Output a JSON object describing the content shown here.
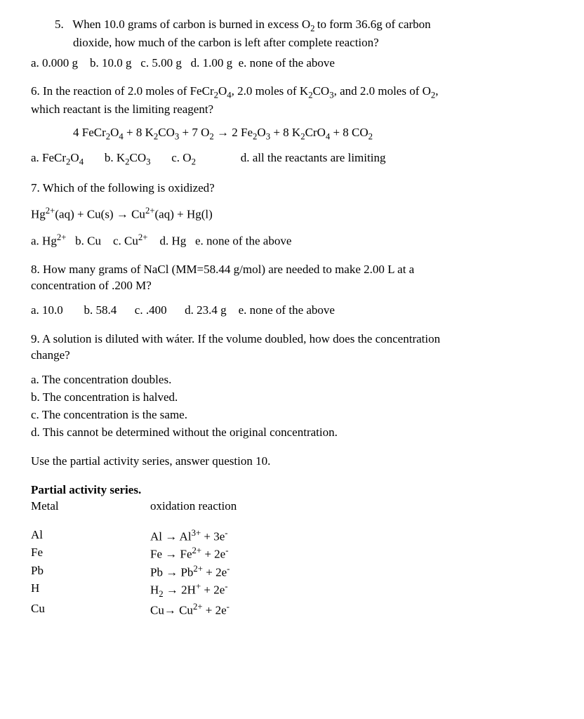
{
  "q5": {
    "num": "5.",
    "stem1": "When 10.0 grams of carbon is burned in excess O",
    "stem2": " to form 36.6g of carbon",
    "stem3": "dioxide, how much of the carbon is left after complete reaction?",
    "a": "a.   0.000 g",
    "b": "b. 10.0 g",
    "c": "c. 5.00 g",
    "d": "d. 1.00 g",
    "e": "e. none of the above"
  },
  "q6": {
    "stem1": "6. In the reaction of 2.0 moles of FeCr",
    "stem2": "O",
    "stem3": ", 2.0 moles of K",
    "stem4": "CO",
    "stem5": ", and 2.0 moles of O",
    "stem6": ",",
    "stem7": "which reactant is the limiting reagent?",
    "eq": {
      "p1": "4 FeCr",
      "p2": "O",
      "p3": "  +  8 K",
      "p4": "CO",
      "p5": "  + 7 O",
      "p6": " → 2 Fe",
      "p7": "O",
      "p8": "  +  8 K",
      "p9": "CrO",
      "p10": "  +  8 CO"
    },
    "a": "a.   FeCr",
    "a2": "O",
    "b": "b.      K",
    "b2": "CO",
    "c": "c. O",
    "d": "d. all the reactants are limiting"
  },
  "q7": {
    "stem": "7. Which of the following is oxidized?",
    "eq": {
      "p1": "Hg",
      "p2": "(aq)  +  Cu(s)  →   Cu",
      "p3": "(aq)    +  Hg(l)"
    },
    "a": "a.   Hg",
    "b": "b. Cu",
    "c": "c. Cu",
    "d": "d. Hg",
    "e": "e. none of the above"
  },
  "q8": {
    "stem1": "8. How many grams of NaCl (MM=58.44 g/mol) are needed to make 2.00 L at a",
    "stem2": "concentration of .200 M?",
    "a": "a.   10.0",
    "b": "b. 58.4",
    "c": "c. .400",
    "d": "d.   23.4 g",
    "e": "e. none of the above"
  },
  "q9": {
    "stem1": "9. A solution is diluted with wáter. If the volume doubled, how does the concentration",
    "stem2": "change?",
    "a": "a.   The concentration doubles.",
    "b": "b.   The concentration is halved.",
    "c": "c.   The concentration is the same.",
    "d": "d.   This cannot be determined without the original concentration."
  },
  "q10intro": "Use the partial activity series, answer question 10.",
  "activity": {
    "title": "Partial activity series.",
    "hMetal": "Metal",
    "hRxn": "oxidation reaction",
    "rows": [
      {
        "metal": "Al",
        "lhs": "Al → Al",
        "sup": "3+",
        "rhs": "  + 3e"
      },
      {
        "metal": "Fe",
        "lhs": " Fe → Fe",
        "sup": "2+",
        "rhs": "  +  2e"
      },
      {
        "metal": "Pb",
        "lhs": "Pb → Pb",
        "sup": "2+",
        "rhs": "  +  2e"
      },
      {
        "metal": "H",
        "lhs": "H",
        "sub": "2",
        "mid": " → 2H",
        "sup": "+",
        "rhs": "  + 2e"
      },
      {
        "metal": "Cu",
        "lhs": "  Cu→ Cu",
        "sup": "2+",
        "rhs": "  + 2e"
      }
    ]
  }
}
